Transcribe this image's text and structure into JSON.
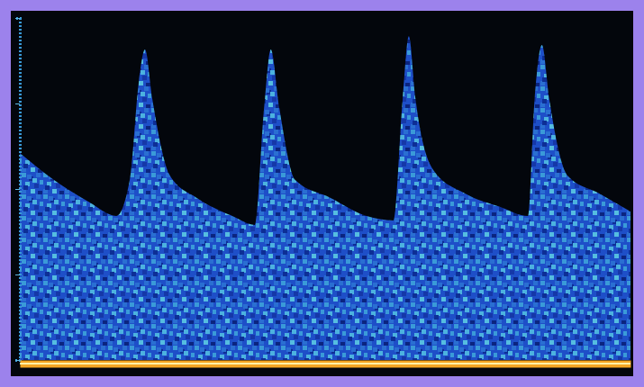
{
  "chart_data": {
    "type": "area",
    "x": [
      0,
      5.6,
      11.4,
      15.8,
      18.0,
      19.5,
      20.5,
      21.7,
      24.6,
      29.0,
      34.8,
      38.5,
      40.0,
      41.1,
      42.5,
      45.1,
      50.9,
      56.8,
      61.2,
      62.7,
      63.7,
      64.8,
      67.8,
      72.9,
      78.8,
      83.2,
      84.3,
      85.5,
      86.7,
      89.7,
      94.9,
      100
    ],
    "values": [
      60.5,
      52.6,
      46.1,
      42.1,
      52.6,
      81.6,
      90.8,
      76.3,
      53.9,
      47.4,
      42.1,
      39.5,
      73.7,
      90.8,
      73.7,
      52.6,
      47.4,
      42.1,
      40.8,
      76.3,
      94.7,
      76.3,
      55.3,
      48.7,
      44.7,
      42.1,
      76.3,
      92.1,
      76.3,
      53.9,
      48.7,
      43.4
    ],
    "color": "#1e4fc8",
    "xlim": [
      0,
      100
    ],
    "ylim": [
      0,
      100
    ],
    "yticks": [
      0,
      25,
      50,
      75,
      100
    ],
    "tick_labels": false,
    "grid": false
  }
}
